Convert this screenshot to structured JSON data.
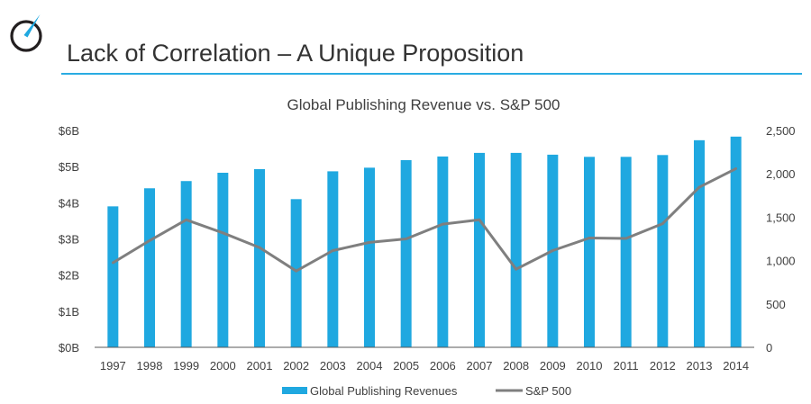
{
  "page": {
    "title": "Lack of Correlation – A Unique Proposition",
    "logo_icon": "gauge-icon",
    "accent_color": "#1fa8e0",
    "rule_color": "#29abe2",
    "logo_color": "#231f20"
  },
  "chart_data": {
    "type": "bar+line",
    "title": "Global Publishing Revenue vs. S&P 500",
    "categories": [
      "1997",
      "1998",
      "1999",
      "2000",
      "2001",
      "2002",
      "2003",
      "2004",
      "2005",
      "2006",
      "2007",
      "2008",
      "2009",
      "2010",
      "2011",
      "2012",
      "2013",
      "2014"
    ],
    "series": [
      {
        "name": "Global Publishing Revenues",
        "kind": "bar",
        "axis": "left",
        "unit": "$B",
        "color": "#1fa8e0",
        "values": [
          3.9,
          4.4,
          4.6,
          4.83,
          4.93,
          4.1,
          4.87,
          4.97,
          5.18,
          5.28,
          5.38,
          5.38,
          5.33,
          5.27,
          5.27,
          5.32,
          5.73,
          5.83
        ]
      },
      {
        "name": "S&P 500",
        "kind": "line",
        "axis": "right",
        "color": "#7f7f7f",
        "values": [
          975,
          1230,
          1470,
          1320,
          1150,
          880,
          1115,
          1210,
          1250,
          1420,
          1470,
          900,
          1115,
          1260,
          1255,
          1425,
          1845,
          2060
        ]
      }
    ],
    "y_left": {
      "min": 0,
      "max": 6,
      "ticks": [
        0,
        1,
        2,
        3,
        4,
        5,
        6
      ],
      "tick_labels": [
        "$0B",
        "$1B",
        "$2B",
        "$3B",
        "$4B",
        "$5B",
        "$6B"
      ]
    },
    "y_right": {
      "min": 0,
      "max": 2500,
      "ticks": [
        0,
        500,
        1000,
        1500,
        2000,
        2500
      ],
      "tick_labels": [
        "0",
        "500",
        "1,000",
        "1,500",
        "2,000",
        "2,500"
      ]
    },
    "grid": false,
    "legend_position": "bottom",
    "axis_color": "#595959"
  }
}
